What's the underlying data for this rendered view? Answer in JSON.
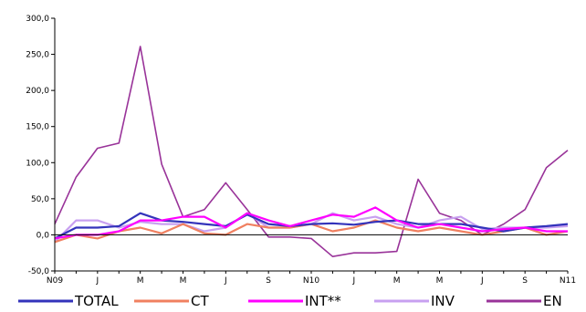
{
  "chart_data": {
    "type": "line",
    "title": "",
    "xlabel": "",
    "ylabel": "",
    "ylim": [
      -50,
      300
    ],
    "yticks": [
      -50,
      0,
      50,
      100,
      150,
      200,
      250,
      300
    ],
    "ytick_labels": [
      "-50,0",
      "0,0",
      "50,0",
      "100,0",
      "150,0",
      "200,0",
      "250,0",
      "300,0"
    ],
    "xtick_labels": [
      "N09",
      "J",
      "M",
      "M",
      "J",
      "S",
      "N10",
      "J",
      "M",
      "M",
      "J",
      "S",
      "N11"
    ],
    "xtick_index": [
      0,
      2,
      4,
      6,
      8,
      10,
      12,
      14,
      16,
      18,
      20,
      22,
      24
    ],
    "grid": false,
    "legend_position": "bottom",
    "series": [
      {
        "name": "TOTAL",
        "color": "#3333bb",
        "values": [
          -5,
          10,
          10,
          12,
          30,
          20,
          18,
          15,
          12,
          28,
          15,
          12,
          15,
          16,
          14,
          18,
          20,
          15,
          15,
          15,
          10,
          5,
          10,
          12,
          15
        ]
      },
      {
        "name": "CT",
        "color": "#f08060",
        "values": [
          -10,
          0,
          -5,
          5,
          10,
          2,
          15,
          2,
          0,
          15,
          10,
          10,
          15,
          5,
          10,
          20,
          10,
          5,
          10,
          5,
          0,
          5,
          10,
          0,
          5
        ]
      },
      {
        "name": "INT**",
        "color": "#ff00ff",
        "values": [
          -5,
          0,
          0,
          5,
          20,
          20,
          25,
          25,
          10,
          30,
          20,
          12,
          20,
          28,
          25,
          38,
          20,
          10,
          15,
          10,
          5,
          8,
          10,
          5,
          5
        ]
      },
      {
        "name": "INV",
        "color": "#c8a0f0",
        "values": [
          -10,
          20,
          20,
          10,
          18,
          15,
          15,
          5,
          10,
          30,
          10,
          10,
          15,
          30,
          20,
          25,
          15,
          10,
          20,
          25,
          8,
          10,
          10,
          10,
          12
        ]
      },
      {
        "name": "EN",
        "color": "#993399",
        "values": [
          15,
          80,
          120,
          127,
          261,
          98,
          25,
          35,
          72,
          35,
          -3,
          -3,
          -5,
          -30,
          -25,
          -25,
          -23,
          77,
          30,
          20,
          0,
          15,
          35,
          93,
          117
        ]
      }
    ]
  }
}
